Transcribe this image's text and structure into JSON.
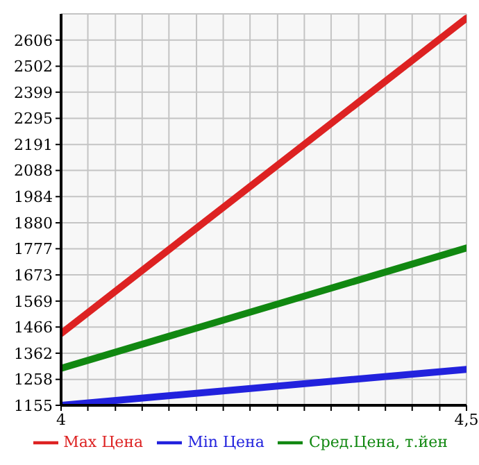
{
  "chart_data": {
    "type": "line",
    "x": [
      4,
      4.5
    ],
    "series": [
      {
        "name": "Max Цена",
        "color": "#dd2222",
        "values": [
          1440,
          2693
        ]
      },
      {
        "name": "Min Цена",
        "color": "#2222dd",
        "values": [
          1155,
          1298
        ]
      },
      {
        "name": "Сред.Цена, т.йен",
        "color": "#118811",
        "values": [
          1302,
          1780
        ]
      }
    ],
    "xlim": [
      4,
      4.5
    ],
    "xticks": [
      4,
      {
        "value": 4.033,
        "label": null
      },
      {
        "value": 4.067,
        "label": null
      },
      {
        "value": 4.1,
        "label": null
      },
      {
        "value": 4.133,
        "label": null
      },
      {
        "value": 4.167,
        "label": null
      },
      {
        "value": 4.2,
        "label": null
      },
      {
        "value": 4.233,
        "label": null
      },
      {
        "value": 4.267,
        "label": null
      },
      {
        "value": 4.3,
        "label": null
      },
      {
        "value": 4.333,
        "label": null
      },
      {
        "value": 4.367,
        "label": null
      },
      {
        "value": 4.4,
        "label": null
      },
      {
        "value": 4.433,
        "label": null
      },
      {
        "value": 4.467,
        "label": null
      },
      {
        "value": 4.5,
        "label": "4,5"
      }
    ],
    "ylim": [
      1155,
      2710
    ],
    "yticks": [
      1155,
      1258,
      1362,
      1466,
      1569,
      1673,
      1777,
      1880,
      1984,
      2088,
      2191,
      2295,
      2399,
      2502,
      2606
    ],
    "grid": true,
    "legend": "bottom",
    "marker": "none",
    "line_style": "solid"
  }
}
